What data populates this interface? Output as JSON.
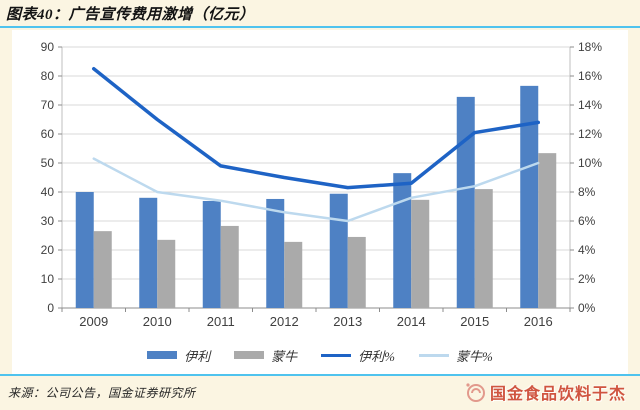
{
  "header": {
    "title": "图表40：广告宣传费用激增（亿元）"
  },
  "footer": {
    "source": "来源：公司公告，国金证券研究所",
    "watermark": "国金食品饮料于杰"
  },
  "colors": {
    "page_background": "#fbf5e2",
    "panel_background": "#ffffff",
    "divider_blue": "#4fc3ee",
    "bar_yili": "#4e81c4",
    "bar_mengniu": "#aaaaaa",
    "line_yili_pct": "#1e63c5",
    "line_mengniu_pct": "#bdd9ee",
    "gridline": "#d9d9d9",
    "axis_line": "#8c8c8c",
    "axis_text": "#404040",
    "watermark_red": "#d05540"
  },
  "chart_data": {
    "type": "bar",
    "subtype": "combo-bar-line",
    "title": "广告宣传费用激增（亿元）",
    "categories": [
      "2009",
      "2010",
      "2011",
      "2012",
      "2013",
      "2014",
      "2015",
      "2016"
    ],
    "series": [
      {
        "name": "伊利",
        "type": "bar",
        "axis": "left",
        "color": "#4e81c4",
        "values": [
          40.0,
          38.0,
          36.9,
          37.6,
          39.4,
          46.5,
          72.8,
          76.6
        ]
      },
      {
        "name": "蒙牛",
        "type": "bar",
        "axis": "left",
        "color": "#aaaaaa",
        "values": [
          26.5,
          23.5,
          28.3,
          22.8,
          24.5,
          37.3,
          41.0,
          53.4
        ]
      },
      {
        "name": "伊利%",
        "type": "line",
        "axis": "right",
        "color": "#1e63c5",
        "values": [
          16.5,
          13.0,
          9.8,
          9.0,
          8.3,
          8.6,
          12.1,
          12.8
        ]
      },
      {
        "name": "蒙牛%",
        "type": "line",
        "axis": "right",
        "color": "#bdd9ee",
        "values": [
          10.3,
          8.0,
          7.4,
          6.6,
          6.0,
          7.6,
          8.4,
          10.0
        ]
      }
    ],
    "left_axis": {
      "min": 0,
      "max": 90,
      "step": 10,
      "ticks": [
        "0",
        "10",
        "20",
        "30",
        "40",
        "50",
        "60",
        "70",
        "80",
        "90"
      ]
    },
    "right_axis": {
      "min": 0,
      "max": 18,
      "step": 2,
      "ticks": [
        "0%",
        "2%",
        "4%",
        "6%",
        "8%",
        "10%",
        "12%",
        "14%",
        "16%",
        "18%"
      ]
    },
    "legend": [
      "伊利",
      "蒙牛",
      "伊利%",
      "蒙牛%"
    ],
    "legend_position": "bottom",
    "grid": true,
    "xlabel": "",
    "ylabel_left": "亿元",
    "ylabel_right": "%"
  }
}
